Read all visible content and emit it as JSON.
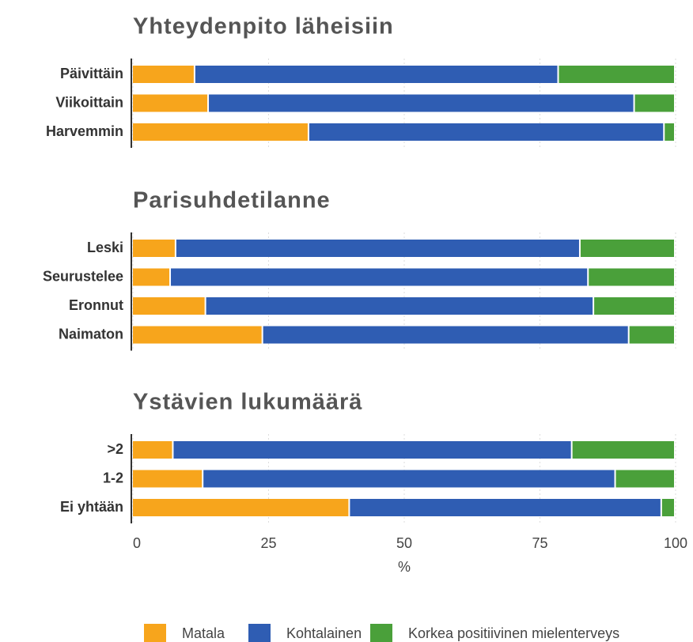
{
  "chart_data": {
    "type": "stacked_barh",
    "xlim": [
      0,
      100
    ],
    "xticks": [
      0,
      25,
      50,
      75,
      100
    ],
    "xlabel": "%",
    "grid": true,
    "legend": "bottom",
    "series": [
      {
        "name": "Matala",
        "color": "#f7a51c"
      },
      {
        "name": "Kohtalainen",
        "color": "#2f5db3"
      },
      {
        "name": "Korkea positiivinen mielenterveys",
        "color": "#4aa03a"
      }
    ],
    "panels": [
      {
        "title": "Yhteydenpito läheisiin",
        "categories": [
          "Päivittäin",
          "Viikoittain",
          "Harvemmin"
        ],
        "series": [
          {
            "values": [
              11.5,
              14,
              32.5
            ]
          },
          {
            "values": [
              67,
              78.5,
              65.5
            ]
          },
          {
            "values": [
              21.5,
              7.5,
              2
            ]
          }
        ]
      },
      {
        "title": "Parisuhdetilanne",
        "categories": [
          "Leski",
          "Seurustelee",
          "Eronnut",
          "Naimaton"
        ],
        "series": [
          {
            "values": [
              8,
              7,
              13.5,
              24
            ]
          },
          {
            "values": [
              74.5,
              77,
              71.5,
              67.5
            ]
          },
          {
            "values": [
              17.5,
              16,
              15,
              8.5
            ]
          }
        ]
      },
      {
        "title": "Ystävien lukumäärä",
        "categories": [
          ">2",
          "1-2",
          "Ei yhtään"
        ],
        "series": [
          {
            "values": [
              7.5,
              13,
              40
            ]
          },
          {
            "values": [
              73.5,
              76,
              57.5
            ]
          },
          {
            "values": [
              19,
              11,
              2.5
            ]
          }
        ]
      }
    ]
  }
}
